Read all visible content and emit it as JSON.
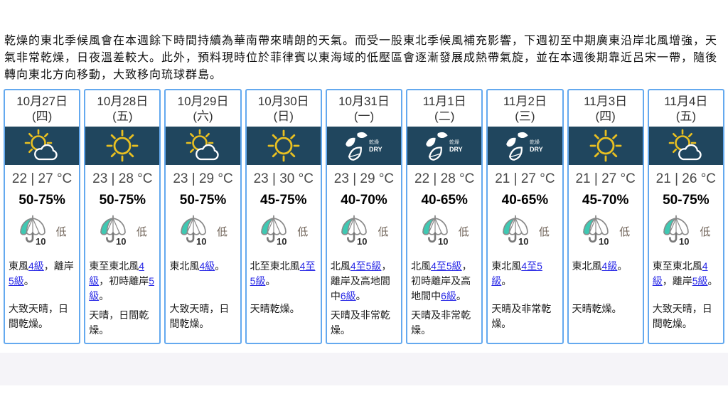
{
  "forecast_summary": "乾燥的東北季候風會在本週餘下時間持續為華南帶來晴朗的天氣。而受一股東北季候風補充影響，下週初至中期廣東沿岸北風增強，天氣非常乾燥，日夜溫差較大。此外，預料現時位於菲律賓以東海域的低壓區會逐漸發展成熱帶氣旋，並在本週後期靠近呂宋一帶，隨後轉向東北方向移動，大致移向琉球群島。",
  "psr": {
    "umbrella_value": "10"
  },
  "dry_icon": {
    "cn": "乾燥",
    "en": "DRY"
  },
  "colors": {
    "card_border": "#64a9ef",
    "icon_band_bg": "#20465e",
    "sun_yellow": "#e9c021",
    "psr_teal": "#3fc8b2",
    "link_blue": "#2929e6"
  },
  "days": [
    {
      "date": "10月27日",
      "weekday": "(四)",
      "icon": "sun-cloud",
      "temp": "22 | 27 °C",
      "humidity": "50-75%",
      "psr": "低",
      "wind": [
        {
          "t": "東風"
        },
        {
          "t": "4級",
          "link": true
        },
        {
          "t": "，離岸"
        },
        {
          "t": "5級",
          "link": true
        },
        {
          "t": "。"
        }
      ],
      "weather": "大致天晴，日間乾燥。"
    },
    {
      "date": "10月28日",
      "weekday": "(五)",
      "icon": "sun",
      "temp": "23 | 28 °C",
      "humidity": "50-75%",
      "psr": "低",
      "wind": [
        {
          "t": "東至東北風"
        },
        {
          "t": "4級",
          "link": true
        },
        {
          "t": "，初時離岸"
        },
        {
          "t": "5級",
          "link": true
        },
        {
          "t": "。"
        }
      ],
      "weather": "天晴，日間乾燥。"
    },
    {
      "date": "10月29日",
      "weekday": "(六)",
      "icon": "sun-cloud",
      "temp": "23 | 29 °C",
      "humidity": "50-75%",
      "psr": "低",
      "wind": [
        {
          "t": "東北風"
        },
        {
          "t": "4級",
          "link": true
        },
        {
          "t": "。"
        }
      ],
      "weather": "大致天晴，日間乾燥。"
    },
    {
      "date": "10月30日",
      "weekday": "(日)",
      "icon": "sun",
      "temp": "23 | 30 °C",
      "humidity": "45-75%",
      "psr": "低",
      "wind": [
        {
          "t": "北至東北風"
        },
        {
          "t": "4至5級",
          "link": true
        },
        {
          "t": "。"
        }
      ],
      "weather": "天晴乾燥。"
    },
    {
      "date": "10月31日",
      "weekday": "(一)",
      "icon": "dry",
      "temp": "23 | 29 °C",
      "humidity": "40-70%",
      "psr": "低",
      "wind": [
        {
          "t": "北風"
        },
        {
          "t": "4至5級",
          "link": true
        },
        {
          "t": "，離岸及高地間中"
        },
        {
          "t": "6級",
          "link": true
        },
        {
          "t": "。"
        }
      ],
      "weather": "天晴及非常乾燥。"
    },
    {
      "date": "11月1日",
      "weekday": "(二)",
      "icon": "dry",
      "temp": "22 | 28 °C",
      "humidity": "40-65%",
      "psr": "低",
      "wind": [
        {
          "t": "北風"
        },
        {
          "t": "4至5級",
          "link": true
        },
        {
          "t": "，初時離岸及高地間中"
        },
        {
          "t": "6級",
          "link": true
        },
        {
          "t": "。"
        }
      ],
      "weather": "天晴及非常乾燥。"
    },
    {
      "date": "11月2日",
      "weekday": "(三)",
      "icon": "dry",
      "temp": "21 | 27 °C",
      "humidity": "40-65%",
      "psr": "低",
      "wind": [
        {
          "t": "東北風"
        },
        {
          "t": "4至5級",
          "link": true
        },
        {
          "t": "。"
        }
      ],
      "weather": "天晴及非常乾燥。"
    },
    {
      "date": "11月3日",
      "weekday": "(四)",
      "icon": "sun",
      "temp": "21 | 27 °C",
      "humidity": "45-70%",
      "psr": "低",
      "wind": [
        {
          "t": "東北風"
        },
        {
          "t": "4級",
          "link": true
        },
        {
          "t": "。"
        }
      ],
      "weather": "天晴乾燥。"
    },
    {
      "date": "11月4日",
      "weekday": "(五)",
      "icon": "sun-cloud",
      "temp": "21 | 26 °C",
      "humidity": "50-75%",
      "psr": "低",
      "wind": [
        {
          "t": "東至東北風"
        },
        {
          "t": "4級",
          "link": true
        },
        {
          "t": "，離岸"
        },
        {
          "t": "5級",
          "link": true
        },
        {
          "t": "。"
        }
      ],
      "weather": "大致天晴，日間乾燥。"
    }
  ]
}
